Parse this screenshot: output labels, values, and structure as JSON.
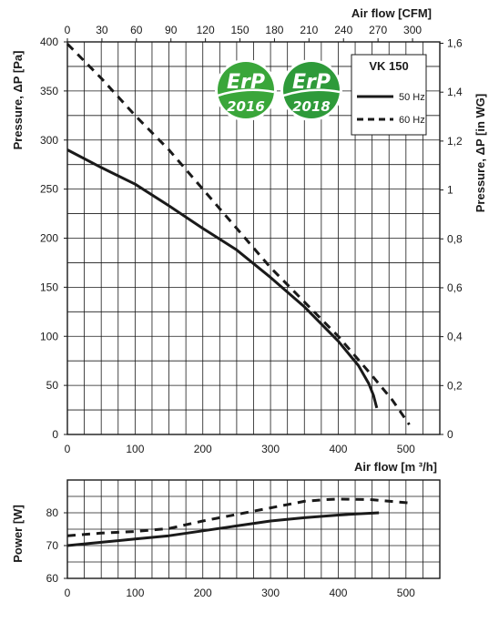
{
  "chart_data": [
    {
      "type": "line",
      "title": "VK 150",
      "xlabel": "Air flow [m ³/h]",
      "x2label": "Air flow [CFM]",
      "ylabel": "Pressure, ΔP [Pa]",
      "y2label": "Pressure, ΔP [in WG]",
      "xlim": [
        0,
        550
      ],
      "ylim": [
        0,
        400
      ],
      "x2lim": [
        0,
        323.7
      ],
      "y2lim": [
        0,
        1.6056
      ],
      "xticks": [
        "0",
        "100",
        "200",
        "300",
        "400",
        "500"
      ],
      "yticks": [
        "0",
        "50",
        "100",
        "150",
        "200",
        "250",
        "300",
        "350",
        "400"
      ],
      "x2ticks": [
        "0",
        "30",
        "60",
        "90",
        "120",
        "150",
        "180",
        "210",
        "240",
        "270",
        "300"
      ],
      "y2ticks": [
        "0",
        "0,2",
        "0,4",
        "0,6",
        "0,8",
        "1",
        "1,2",
        "1,4",
        "1,6"
      ],
      "grid": true,
      "legend_position": "top-right",
      "series": [
        {
          "name": "50 Hz",
          "style": "solid",
          "x": [
            0,
            50,
            100,
            150,
            200,
            250,
            300,
            350,
            400,
            430,
            445,
            452,
            457
          ],
          "y": [
            290,
            272,
            255,
            233,
            210,
            188,
            160,
            130,
            95,
            70,
            52,
            40,
            27
          ]
        },
        {
          "name": "60 Hz",
          "style": "dashed",
          "x": [
            0,
            50,
            100,
            150,
            200,
            250,
            300,
            350,
            400,
            450,
            480,
            505
          ],
          "y": [
            398,
            363,
            325,
            290,
            250,
            210,
            170,
            135,
            100,
            60,
            35,
            10
          ]
        }
      ]
    },
    {
      "type": "line",
      "xlabel": "",
      "ylabel": "Power [W]",
      "xlim": [
        0,
        550
      ],
      "ylim": [
        60,
        90
      ],
      "xticks": [
        "0",
        "100",
        "200",
        "300",
        "400",
        "500"
      ],
      "yticks": [
        "60",
        "70",
        "80"
      ],
      "grid": true,
      "series": [
        {
          "name": "50 Hz",
          "style": "solid",
          "x": [
            0,
            50,
            100,
            150,
            200,
            250,
            300,
            350,
            400,
            430,
            460
          ],
          "y": [
            70,
            71,
            72,
            73,
            74.5,
            76,
            77.5,
            78.5,
            79.3,
            79.7,
            80
          ]
        },
        {
          "name": "60 Hz",
          "style": "dashed",
          "x": [
            0,
            50,
            100,
            150,
            200,
            250,
            300,
            350,
            380,
            400,
            450,
            505
          ],
          "y": [
            73,
            73.8,
            74.3,
            75.2,
            77.5,
            79.5,
            81.5,
            83.5,
            84,
            84.2,
            84,
            83
          ]
        }
      ]
    }
  ],
  "badges": [
    {
      "top": "ErP",
      "bottom": "2016",
      "color": "#3aa63a"
    },
    {
      "top": "ErP",
      "bottom": "2018",
      "color": "#2e9a3a"
    }
  ],
  "colors": {
    "line": "#1a1a1a",
    "grid": "#1a1a1a",
    "badge": "#3aa63a"
  }
}
